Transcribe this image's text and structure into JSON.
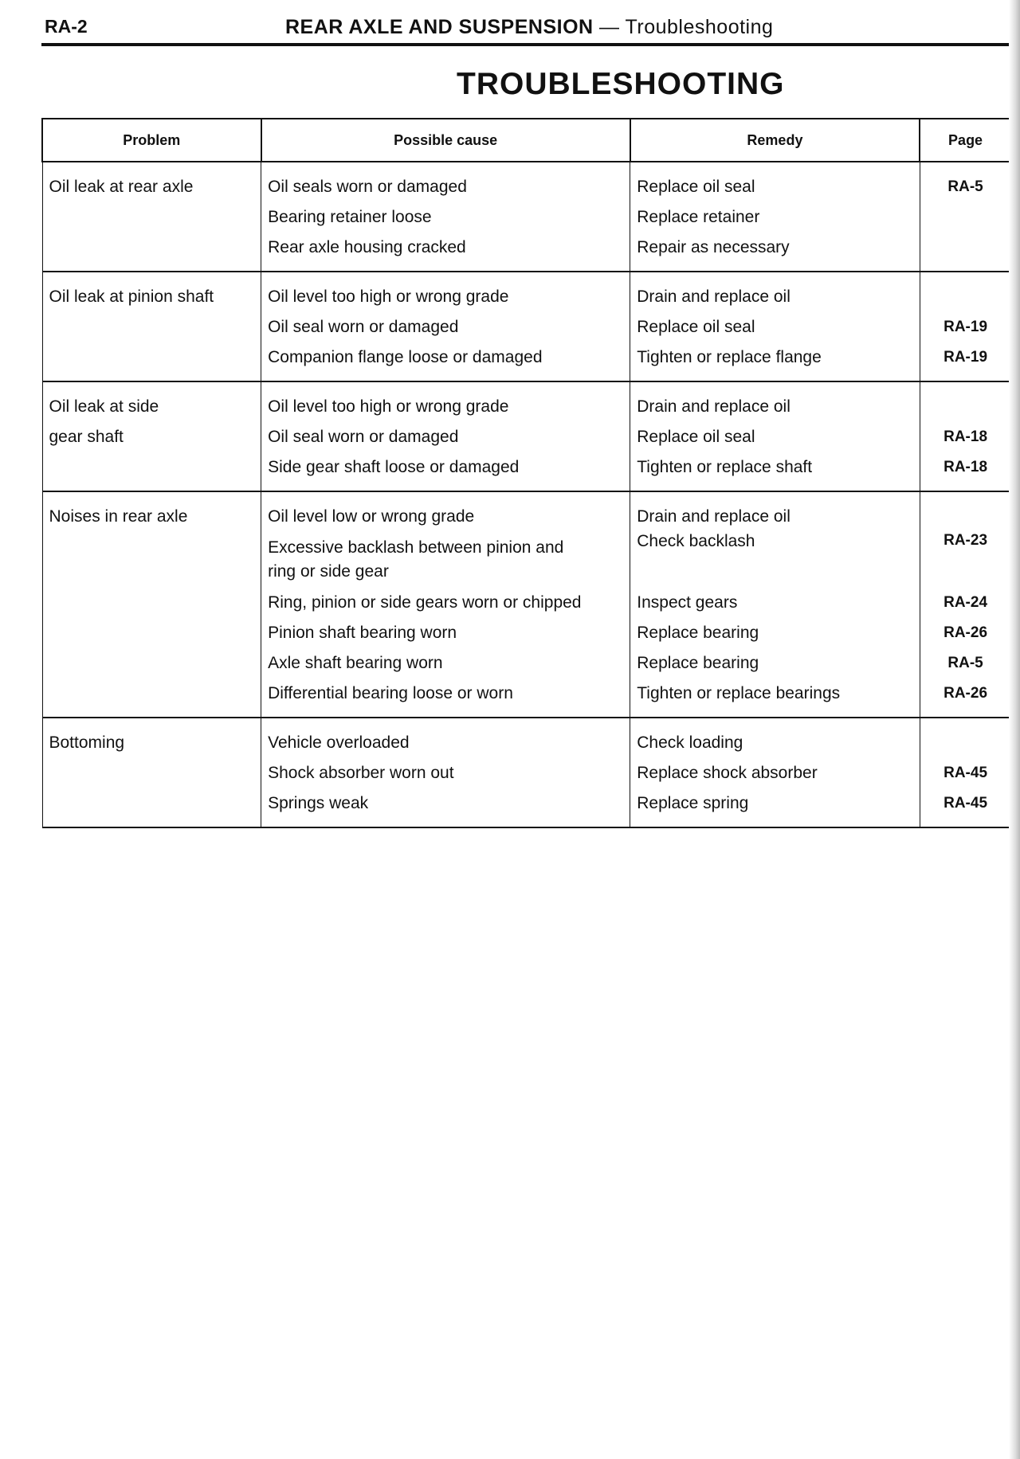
{
  "header": {
    "page_number": "RA-2",
    "section": "REAR AXLE AND SUSPENSION",
    "separator": "—",
    "subsection": "Troubleshooting"
  },
  "title": "TROUBLESHOOTING",
  "table": {
    "columns": [
      "Problem",
      "Possible cause",
      "Remedy",
      "Page"
    ],
    "groups": [
      {
        "problem": "Oil leak at rear axle",
        "items": [
          {
            "cause": "Oil seals worn or damaged",
            "remedy": "Replace oil seal",
            "page": "RA-5"
          },
          {
            "cause": "Bearing retainer loose",
            "remedy": "Replace retainer",
            "page": ""
          },
          {
            "cause": "Rear axle housing cracked",
            "remedy": "Repair as necessary",
            "page": ""
          }
        ]
      },
      {
        "problem": "Oil leak at pinion shaft",
        "items": [
          {
            "cause": "Oil level too high or wrong grade",
            "remedy": "Drain and replace oil",
            "page": ""
          },
          {
            "cause": "Oil seal worn or damaged",
            "remedy": "Replace oil seal",
            "page": "RA-19"
          },
          {
            "cause": "Companion flange loose or damaged",
            "remedy": "Tighten or replace flange",
            "page": "RA-19"
          }
        ]
      },
      {
        "problem": "Oil leak at side gear shaft",
        "items": [
          {
            "cause": "Oil level too high or wrong grade",
            "remedy": "Drain and replace oil",
            "page": ""
          },
          {
            "cause": "Oil seal worn or damaged",
            "remedy": "Replace oil seal",
            "page": "RA-18"
          },
          {
            "cause": "Side gear shaft loose or damaged",
            "remedy": "Tighten or replace shaft",
            "page": "RA-18"
          }
        ]
      },
      {
        "problem": "Noises in rear axle",
        "items": [
          {
            "cause": "Oil level low or wrong grade",
            "remedy": "Drain and replace oil",
            "page": ""
          },
          {
            "cause": "Excessive backlash between pinion and ring or side gear",
            "remedy": "Check backlash",
            "page": "RA-23"
          },
          {
            "cause": "Ring, pinion or side gears worn or chipped",
            "remedy": "Inspect gears",
            "page": "RA-24"
          },
          {
            "cause": "Pinion shaft bearing worn",
            "remedy": "Replace bearing",
            "page": "RA-26"
          },
          {
            "cause": "Axle shaft bearing worn",
            "remedy": "Replace bearing",
            "page": "RA-5"
          },
          {
            "cause": "Differential bearing loose or worn",
            "remedy": "Tighten or replace bearings",
            "page": "RA-26"
          }
        ]
      },
      {
        "problem": "Bottoming",
        "items": [
          {
            "cause": "Vehicle overloaded",
            "remedy": "Check loading",
            "page": ""
          },
          {
            "cause": "Shock absorber worn out",
            "remedy": "Replace shock absorber",
            "page": "RA-45"
          },
          {
            "cause": "Springs weak",
            "remedy": "Replace spring",
            "page": "RA-45"
          }
        ]
      }
    ]
  }
}
